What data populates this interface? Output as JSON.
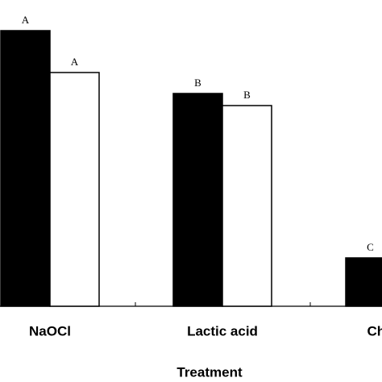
{
  "chart_data": {
    "type": "bar",
    "x_label": "Treatment",
    "categories": [
      "NaOCl",
      "Lactic acid",
      "Chlorine"
    ],
    "series": [
      {
        "color": "#000000",
        "values": [
          342,
          264,
          60
        ],
        "value_labels": [
          "A",
          "B",
          "C"
        ]
      },
      {
        "color": "#ffffff",
        "values": [
          290,
          249,
          null
        ],
        "value_labels": [
          "A",
          "B",
          null
        ]
      }
    ],
    "ylim": [
      0,
      360
    ]
  }
}
